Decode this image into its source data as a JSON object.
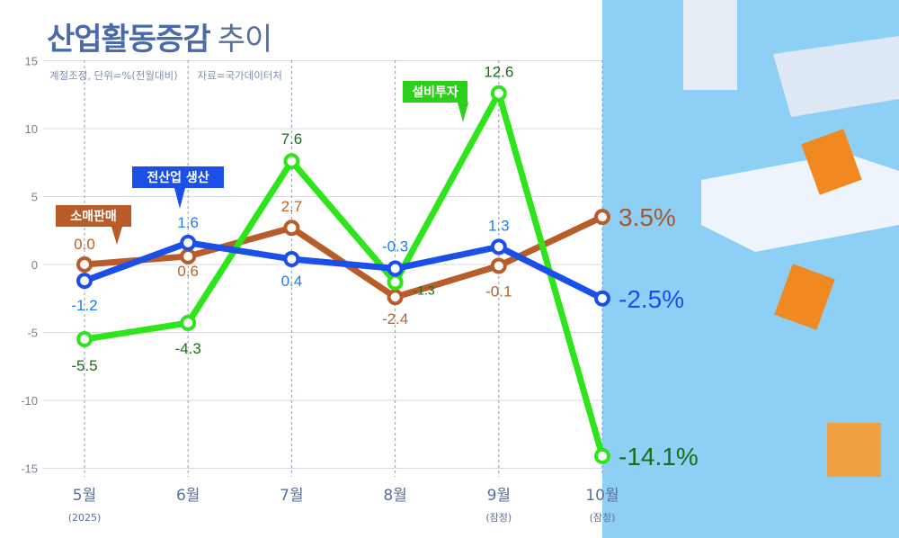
{
  "title": {
    "bold": "산업활동증감",
    "light": "추이"
  },
  "note": {
    "adjust": "계절조정, 단위=%(전월대비)",
    "source": "자료=국가데이터처"
  },
  "colors": {
    "retail": "#b85c2a",
    "production": "#1a4fe8",
    "investment": "#2ee41a",
    "background_panel": "#8ecff5"
  },
  "chart_data": {
    "type": "line",
    "categories": [
      "5월",
      "6월",
      "7월",
      "8월",
      "9월",
      "10월"
    ],
    "category_notes": [
      "(2025)",
      "",
      "",
      "",
      "(잠정)",
      "(잠정)"
    ],
    "ylim": [
      -15,
      15
    ],
    "yticks": [
      "15",
      "10",
      "5",
      "0",
      "-5",
      "-10",
      "-15"
    ],
    "grid": true,
    "series": [
      {
        "name": "소매판매",
        "values": [
          0.0,
          0.6,
          2.7,
          -2.4,
          -0.1,
          3.5
        ],
        "labels": [
          "0.0",
          "0.6",
          "2.7",
          "-2.4",
          "-0.1",
          "3.5%"
        ]
      },
      {
        "name": "전산업 생산",
        "values": [
          -1.2,
          1.6,
          0.4,
          -0.3,
          1.3,
          -2.5
        ],
        "labels": [
          "-1.2",
          "1.6",
          "0.4",
          "-0.3",
          "1.3",
          "-2.5%"
        ]
      },
      {
        "name": "설비투자",
        "values": [
          -5.5,
          -4.3,
          7.6,
          -1.3,
          12.6,
          -14.1
        ],
        "labels": [
          "-5.5",
          "-4.3",
          "7.6",
          "-1.3",
          "12.6",
          "-14.1%"
        ]
      }
    ]
  }
}
